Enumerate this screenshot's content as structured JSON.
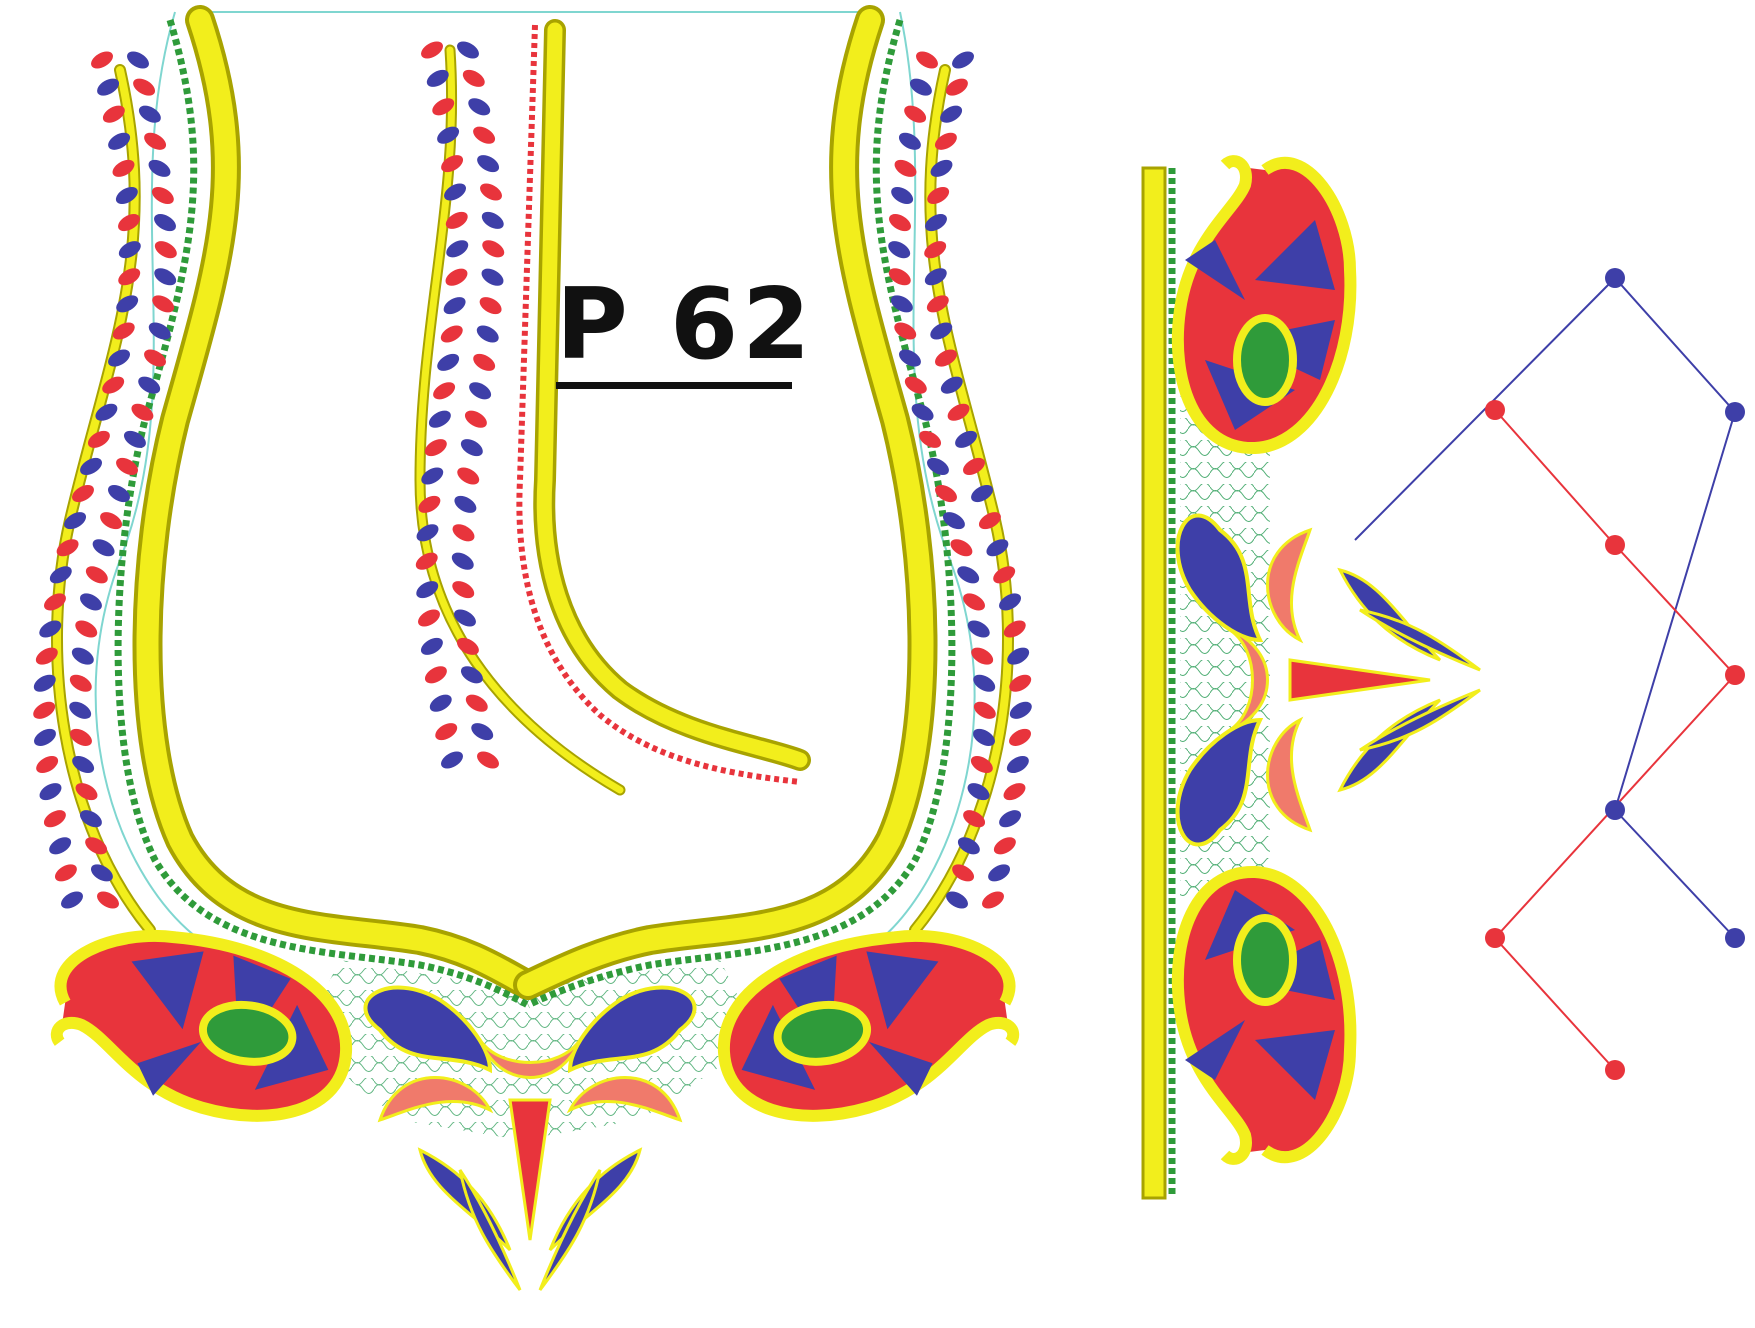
{
  "design": {
    "label": "P 62"
  },
  "colors": {
    "background": "#ffffff",
    "yellow": "#f2ee1c",
    "yellow_outline": "#a8a300",
    "green": "#2f9b3a",
    "red": "#e8343c",
    "blue": "#3e3fa8",
    "salmon": "#f07a6b",
    "cyan_outline": "#7fd6d0",
    "label_ink": "#111111"
  },
  "patterns": [
    {
      "name": "neck-yoke-pattern",
      "motifs": [
        "leaf-vine",
        "paisley",
        "lotus-flower",
        "stitch-fill"
      ]
    },
    {
      "name": "sleeve-border-pattern",
      "motifs": [
        "yellow-border",
        "paisley",
        "lotus-flower",
        "zigzag-dots"
      ]
    }
  ]
}
